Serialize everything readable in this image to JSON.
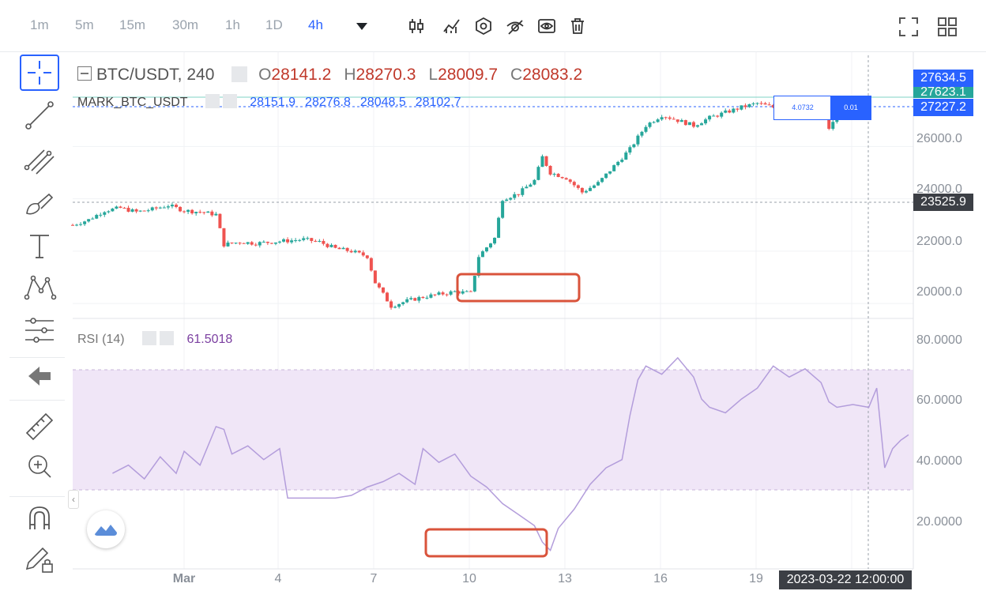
{
  "toolbar": {
    "timeframes": [
      "1m",
      "5m",
      "15m",
      "30m",
      "1h",
      "1D",
      "4h"
    ],
    "active_timeframe": "4h",
    "icons": [
      "candles-icon",
      "indicators-icon",
      "settings-hex-icon",
      "hide-drawings-icon",
      "eye-icon",
      "trash-icon"
    ]
  },
  "left_tools": [
    "crosshair-icon",
    "trend-line-icon",
    "fib-icon",
    "brush-icon",
    "text-icon",
    "pattern-icon",
    "measure-icon",
    "back-arrow-icon",
    "ruler-icon",
    "zoom-in-icon",
    "magnet-icon",
    "lock-pencil-icon"
  ],
  "main_legend": {
    "symbol": "BTC/USDT, 240",
    "o_label": "O",
    "o_value": "28141.2",
    "h_label": "H",
    "h_value": "28270.3",
    "l_label": "L",
    "l_value": "28009.7",
    "c_label": "C",
    "c_value": "28083.2"
  },
  "mark_legend": {
    "name": "MARK_BTC_USDT",
    "values": [
      "28151.9",
      "28276.8",
      "28048.5",
      "28102.7"
    ]
  },
  "rsi_legend": {
    "name": "RSI (14)",
    "value": "61.5018"
  },
  "price_labels": {
    "last": "27634.5",
    "mark": "27623.1",
    "other": "27227.2",
    "crosshair": "23525.9"
  },
  "order_box": {
    "qty": "4.0732",
    "price": "0.01"
  },
  "crosshair_time": "2023-03-22 12:00:00",
  "colors": {
    "up": "#26a69a",
    "down": "#ef5350",
    "rsi": "#b39ddb",
    "band": "#f0e6f7",
    "accent": "#2962ff",
    "annotation": "#d9533b"
  },
  "chart_data": [
    {
      "type": "candlestick",
      "title": "BTC/USDT, 240",
      "xlabel": "",
      "ylabel": "",
      "x_ticks": [
        "Mar",
        "4",
        "7",
        "10",
        "13",
        "16",
        "19"
      ],
      "y_ticks": [
        "20000.0",
        "22000.0",
        "24000.0",
        "26000.0"
      ],
      "ylim": [
        19400,
        28700
      ],
      "series": [
        {
          "values": [
            [
              0,
              23000
            ],
            [
              2,
              23200
            ],
            [
              4,
              23550
            ],
            [
              6,
              23650
            ],
            [
              8,
              23500
            ],
            [
              10,
              23600
            ],
            [
              12,
              23750
            ],
            [
              14,
              23550
            ],
            [
              16,
              23500
            ],
            [
              18,
              23400
            ],
            [
              19,
              22250
            ],
            [
              21,
              22350
            ],
            [
              23,
              22300
            ],
            [
              25,
              22350
            ],
            [
              27,
              22400
            ],
            [
              29,
              22450
            ],
            [
              31,
              22350
            ],
            [
              33,
              22100
            ],
            [
              35,
              22000
            ],
            [
              37,
              21800
            ],
            [
              38,
              20800
            ],
            [
              40,
              19900
            ],
            [
              42,
              20100
            ],
            [
              44,
              20250
            ],
            [
              46,
              20350
            ],
            [
              48,
              20450
            ],
            [
              50,
              20400
            ],
            [
              51,
              21800
            ],
            [
              53,
              22500
            ],
            [
              54,
              24000
            ],
            [
              56,
              24200
            ],
            [
              58,
              24700
            ],
            [
              59,
              25600
            ],
            [
              60,
              25000
            ],
            [
              62,
              24800
            ],
            [
              64,
              24250
            ],
            [
              66,
              24600
            ],
            [
              68,
              25250
            ],
            [
              70,
              25900
            ],
            [
              72,
              26800
            ],
            [
              74,
              27200
            ],
            [
              76,
              27000
            ],
            [
              78,
              26800
            ],
            [
              80,
              27100
            ],
            [
              82,
              27300
            ],
            [
              84,
              27500
            ],
            [
              86,
              27650
            ],
            [
              88,
              27500
            ],
            [
              90,
              27550
            ],
            [
              92,
              27600
            ],
            [
              94,
              27800
            ],
            [
              95,
              26700
            ],
            [
              96,
              27100
            ],
            [
              98,
              27300
            ],
            [
              100,
              27450
            ]
          ]
        }
      ],
      "annotations": [
        "red box around price consolidation near 10–13 Mar"
      ]
    },
    {
      "type": "line",
      "title": "RSI (14)",
      "xlabel": "",
      "ylabel": "",
      "y_ticks": [
        "20.0000",
        "40.0000",
        "60.0000",
        "80.0000"
      ],
      "ylim": [
        5,
        88
      ],
      "bands": [
        30,
        70
      ],
      "series": [
        {
          "values": [
            [
              5,
              38
            ],
            [
              7,
              41
            ],
            [
              9,
              36
            ],
            [
              11,
              44
            ],
            [
              13,
              38
            ],
            [
              14,
              46
            ],
            [
              16,
              41
            ],
            [
              18,
              55
            ],
            [
              19,
              54
            ],
            [
              20,
              45
            ],
            [
              22,
              48
            ],
            [
              24,
              43
            ],
            [
              26,
              47
            ],
            [
              27,
              29
            ],
            [
              30,
              29
            ],
            [
              33,
              29
            ],
            [
              35,
              30
            ],
            [
              37,
              33
            ],
            [
              39,
              35
            ],
            [
              41,
              38
            ],
            [
              43,
              34
            ],
            [
              44,
              47
            ],
            [
              46,
              42
            ],
            [
              48,
              45
            ],
            [
              50,
              37
            ],
            [
              52,
              33
            ],
            [
              54,
              27
            ],
            [
              56,
              23
            ],
            [
              58,
              19
            ],
            [
              59,
              13
            ],
            [
              60,
              10
            ],
            [
              61,
              18
            ],
            [
              63,
              25
            ],
            [
              65,
              34
            ],
            [
              67,
              40
            ],
            [
              69,
              43
            ],
            [
              70,
              59
            ],
            [
              71,
              72
            ],
            [
              72,
              77
            ],
            [
              74,
              74
            ],
            [
              76,
              80
            ],
            [
              78,
              73
            ],
            [
              79,
              65
            ],
            [
              80,
              62
            ],
            [
              82,
              60
            ],
            [
              84,
              65
            ],
            [
              86,
              69
            ],
            [
              88,
              77
            ],
            [
              90,
              73
            ],
            [
              92,
              76
            ],
            [
              94,
              71
            ],
            [
              95,
              64
            ],
            [
              96,
              62
            ],
            [
              98,
              63
            ],
            [
              100,
              62
            ],
            [
              101,
              69
            ],
            [
              102,
              40
            ],
            [
              103,
              47
            ],
            [
              104,
              50
            ],
            [
              105,
              52
            ]
          ]
        }
      ],
      "annotations": [
        "red box around RSI low near 10–11 Mar"
      ]
    }
  ]
}
